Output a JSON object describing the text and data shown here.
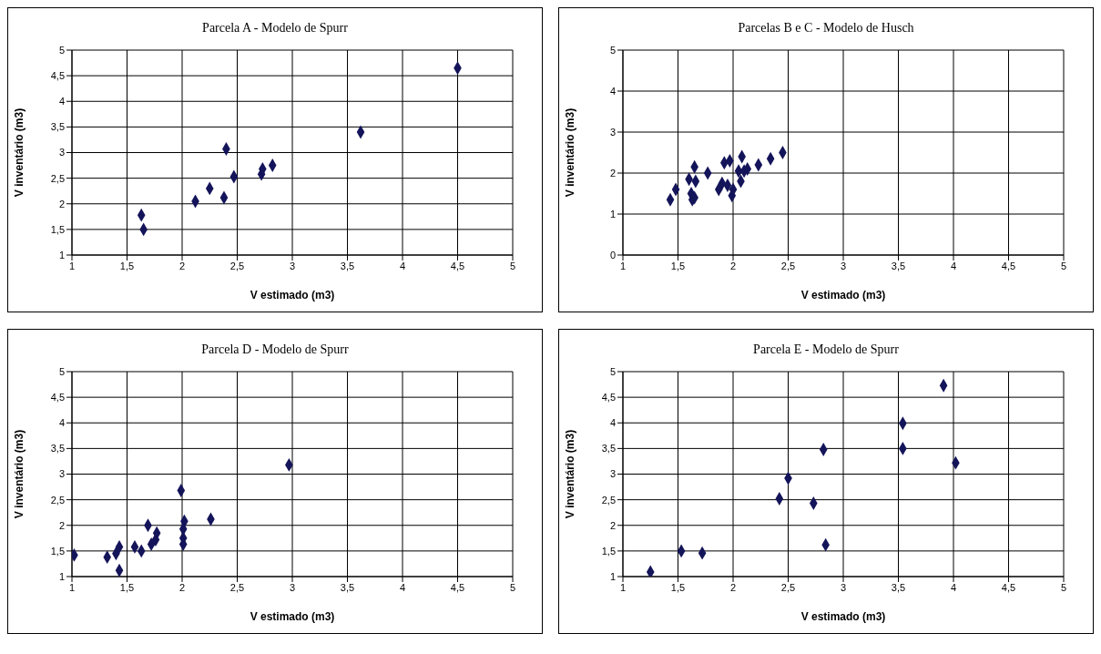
{
  "chart_data": [
    {
      "type": "scatter",
      "title": "Parcela A - Modelo de Spurr",
      "xlabel": "V estimado (m3)",
      "ylabel": "V inventário (m3)",
      "grid": true,
      "marker": "diamond",
      "xlim": [
        1,
        5
      ],
      "xticks": [
        1,
        {
          "value": 1.5,
          "label": "1,5"
        },
        2,
        {
          "value": 2.5,
          "label": "2,5"
        },
        3,
        {
          "value": 3.5,
          "label": "3,5"
        },
        4,
        {
          "value": 4.5,
          "label": "4,5"
        },
        5
      ],
      "ylim": [
        1,
        5
      ],
      "yticks": [
        1,
        {
          "value": 1.5,
          "label": "1,5"
        },
        2,
        {
          "value": 2.5,
          "label": "2,5"
        },
        3,
        {
          "value": 3.5,
          "label": "3,5"
        },
        4,
        {
          "value": 4.5,
          "label": "4,5"
        },
        5
      ],
      "series": [
        {
          "color": "#14145a",
          "x": [
            1.63,
            1.65,
            2.12,
            2.25,
            2.38,
            2.4,
            2.47,
            2.72,
            2.73,
            2.82,
            3.62,
            4.5
          ],
          "values": [
            1.78,
            1.5,
            2.05,
            2.3,
            2.12,
            3.07,
            2.53,
            2.58,
            2.68,
            2.75,
            3.4,
            4.65
          ]
        }
      ]
    },
    {
      "type": "scatter",
      "title": "Parcelas B e C - Modelo de Husch",
      "xlabel": "V estimado (m3)",
      "ylabel": "V inventário (m3)",
      "grid": true,
      "marker": "diamond",
      "xlim": [
        1,
        5
      ],
      "xticks": [
        1,
        {
          "value": 1.5,
          "label": "1,5"
        },
        2,
        {
          "value": 2.5,
          "label": "2,5"
        },
        3,
        {
          "value": 3.5,
          "label": "3,5"
        },
        4,
        {
          "value": 4.5,
          "label": "4,5"
        },
        5
      ],
      "ylim": [
        0,
        5
      ],
      "yticks": [
        0,
        1,
        2,
        3,
        4,
        5
      ],
      "series": [
        {
          "color": "#14145a",
          "x": [
            1.43,
            1.48,
            1.6,
            1.62,
            1.63,
            1.65,
            1.66,
            1.65,
            1.77,
            1.87,
            1.9,
            1.92,
            1.95,
            1.97,
            1.99,
            2.0,
            2.05,
            2.07,
            2.08,
            2.1,
            2.13,
            2.23,
            2.34,
            2.45
          ],
          "values": [
            1.35,
            1.6,
            1.85,
            1.5,
            1.35,
            1.4,
            1.8,
            2.15,
            2.0,
            1.6,
            1.75,
            2.25,
            1.7,
            2.3,
            1.45,
            1.6,
            2.05,
            1.8,
            2.4,
            2.05,
            2.1,
            2.2,
            2.35,
            2.5
          ]
        }
      ]
    },
    {
      "type": "scatter",
      "title": "Parcela D - Modelo de Spurr",
      "xlabel": "V estimado (m3)",
      "ylabel": "V inventário (m3)",
      "grid": true,
      "marker": "diamond",
      "xlim": [
        1,
        5
      ],
      "xticks": [
        1,
        {
          "value": 1.5,
          "label": "1,5"
        },
        2,
        {
          "value": 2.5,
          "label": "2,5"
        },
        3,
        {
          "value": 3.5,
          "label": "3,5"
        },
        4,
        {
          "value": 4.5,
          "label": "4,5"
        },
        5
      ],
      "ylim": [
        1,
        5
      ],
      "yticks": [
        1,
        {
          "value": 1.5,
          "label": "1,5"
        },
        2,
        {
          "value": 2.5,
          "label": "2,5"
        },
        3,
        {
          "value": 3.5,
          "label": "3,5"
        },
        4,
        {
          "value": 4.5,
          "label": "4,5"
        },
        5
      ],
      "series": [
        {
          "color": "#14145a",
          "x": [
            1.02,
            1.32,
            1.4,
            1.43,
            1.43,
            1.57,
            1.63,
            1.69,
            1.72,
            1.76,
            1.77,
            1.99,
            2.02,
            2.01,
            2.01,
            2.01,
            2.26,
            2.97
          ],
          "values": [
            1.42,
            1.38,
            1.45,
            1.58,
            1.12,
            1.58,
            1.5,
            2.0,
            1.63,
            1.72,
            1.85,
            2.68,
            2.08,
            1.93,
            1.75,
            1.63,
            2.12,
            3.18
          ]
        }
      ]
    },
    {
      "type": "scatter",
      "title": "Parcela E - Modelo de Spurr",
      "xlabel": "V estimado (m3)",
      "ylabel": "V inventário (m3)",
      "grid": true,
      "marker": "diamond",
      "xlim": [
        1,
        5
      ],
      "xticks": [
        1,
        {
          "value": 1.5,
          "label": "1,5"
        },
        2,
        {
          "value": 2.5,
          "label": "2,5"
        },
        3,
        {
          "value": 3.5,
          "label": "3,5"
        },
        4,
        {
          "value": 4.5,
          "label": "4,5"
        },
        5
      ],
      "ylim": [
        1,
        5
      ],
      "yticks": [
        1,
        {
          "value": 1.5,
          "label": "1,5"
        },
        2,
        {
          "value": 2.5,
          "label": "2,5"
        },
        3,
        {
          "value": 3.5,
          "label": "3,5"
        },
        4,
        {
          "value": 4.5,
          "label": "4,5"
        },
        5
      ],
      "series": [
        {
          "color": "#14145a",
          "x": [
            1.25,
            1.53,
            1.72,
            2.42,
            2.5,
            2.73,
            2.82,
            2.84,
            3.54,
            3.54,
            3.91,
            4.02
          ],
          "values": [
            1.09,
            1.5,
            1.46,
            2.52,
            2.92,
            2.43,
            3.48,
            1.62,
            3.99,
            3.5,
            4.73,
            3.22
          ]
        }
      ]
    }
  ]
}
